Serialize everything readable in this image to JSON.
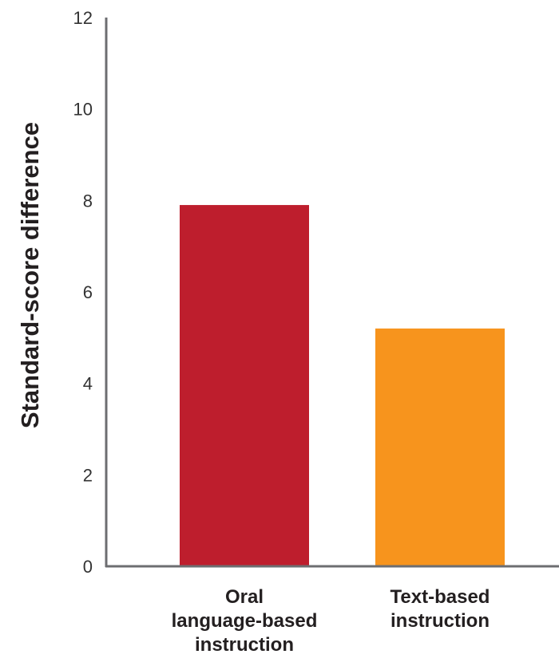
{
  "chart_data": {
    "type": "bar",
    "title": "",
    "xlabel": "",
    "ylabel": "Standard-score difference",
    "ylim": [
      0,
      12
    ],
    "yticks": [
      0,
      2,
      4,
      6,
      8,
      10,
      12
    ],
    "grid": false,
    "categories": [
      [
        "Oral",
        "language-based",
        "instruction"
      ],
      [
        "Text-based",
        "instruction"
      ]
    ],
    "values": [
      7.9,
      5.2
    ],
    "colors": [
      "#be1e2d",
      "#f7941d"
    ]
  }
}
